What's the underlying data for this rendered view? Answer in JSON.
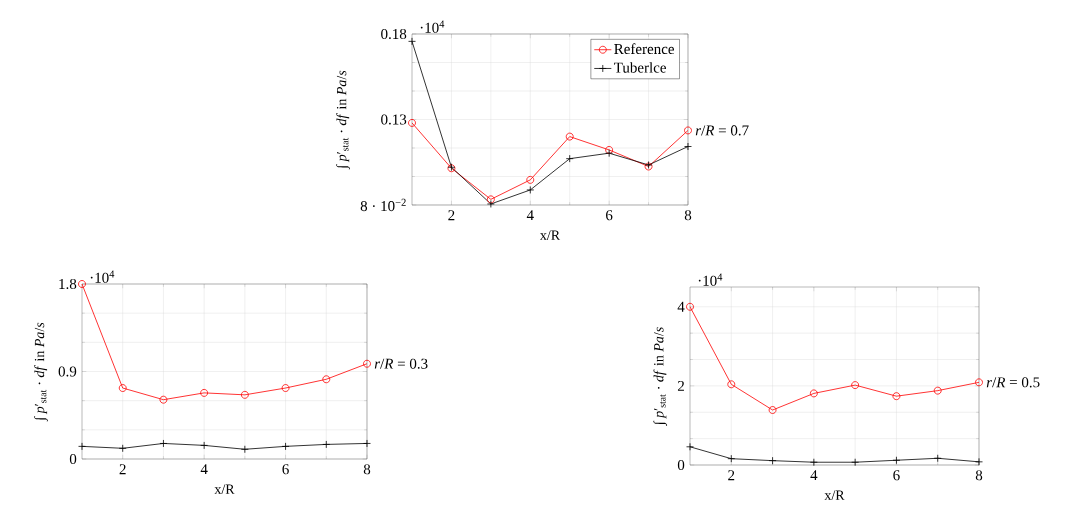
{
  "chart_data": [
    {
      "type": "line",
      "xlabel": "x/R",
      "ylabel": "∫ *p*′$_{stat}$ · *df* in *Pa*/*s*",
      "x": [
        1,
        2,
        3,
        4,
        5,
        6,
        7,
        8
      ],
      "series": [
        {
          "name": "Reference",
          "color": "#ff0000",
          "marker": "circle",
          "values": [
            0.128,
            0.1015,
            0.0833,
            0.0947,
            0.12,
            0.1122,
            0.1025,
            0.1236
          ]
        },
        {
          "name": "Tuberlce",
          "color": "#000000",
          "marker": "cross",
          "values": [
            0.1757,
            0.1021,
            0.0806,
            0.0888,
            0.1071,
            0.1103,
            0.1034,
            0.1142
          ]
        }
      ],
      "xlim": [
        1,
        8
      ],
      "ylim": [
        0.08,
        0.18
      ],
      "xticks": [
        2,
        4,
        6,
        8
      ],
      "yticks": [
        {
          "value": 0.08,
          "label": "8 · 10$^{−2}$"
        },
        0.13,
        0.18
      ],
      "grid": true,
      "legend": "top right",
      "line_style": "solid",
      "annotations": [
        "·10$^{4}$",
        "*r*/*R* = 0.7"
      ]
    },
    {
      "type": "line",
      "xlabel": "x/R",
      "ylabel": "∫ *p*′$_{stat}$ · *df* in *Pa*/*s*",
      "x": [
        1,
        2,
        3,
        4,
        5,
        6,
        7,
        8
      ],
      "series": [
        {
          "color": "#ff0000",
          "marker": "circle",
          "values": [
            1.8,
            0.73,
            0.61,
            0.68,
            0.66,
            0.73,
            0.82,
            0.98
          ]
        },
        {
          "color": "#000000",
          "marker": "cross",
          "values": [
            0.13,
            0.11,
            0.16,
            0.14,
            0.1,
            0.13,
            0.15,
            0.16
          ]
        }
      ],
      "xlim": [
        1,
        8
      ],
      "ylim": [
        0,
        1.8
      ],
      "xticks": [
        2,
        4,
        6,
        8
      ],
      "yticks": [
        0,
        0.9,
        1.8
      ],
      "grid": true,
      "line_style": "solid",
      "annotations": [
        "·10$^{4}$",
        "*r*/*R* = 0.3"
      ]
    },
    {
      "type": "line",
      "xlabel": "x/R",
      "ylabel": "∫ *p*′$_{stat}$ · *df* in *Pa*/*s*",
      "x": [
        1,
        2,
        3,
        4,
        5,
        6,
        7,
        8
      ],
      "series": [
        {
          "color": "#ff0000",
          "marker": "circle",
          "values": [
            4.0,
            2.04,
            1.39,
            1.81,
            2.02,
            1.74,
            1.88,
            2.09
          ]
        },
        {
          "color": "#000000",
          "marker": "cross",
          "values": [
            0.46,
            0.16,
            0.11,
            0.07,
            0.07,
            0.12,
            0.17,
            0.08
          ]
        }
      ],
      "xlim": [
        1,
        8
      ],
      "ylim": [
        0,
        4.5
      ],
      "xticks": [
        2,
        4,
        6,
        8
      ],
      "yticks": [
        0,
        2,
        4
      ],
      "grid": true,
      "line_style": "solid",
      "annotations": [
        "·10$^{4}$",
        "*r*/*R* = 0.5"
      ]
    }
  ]
}
